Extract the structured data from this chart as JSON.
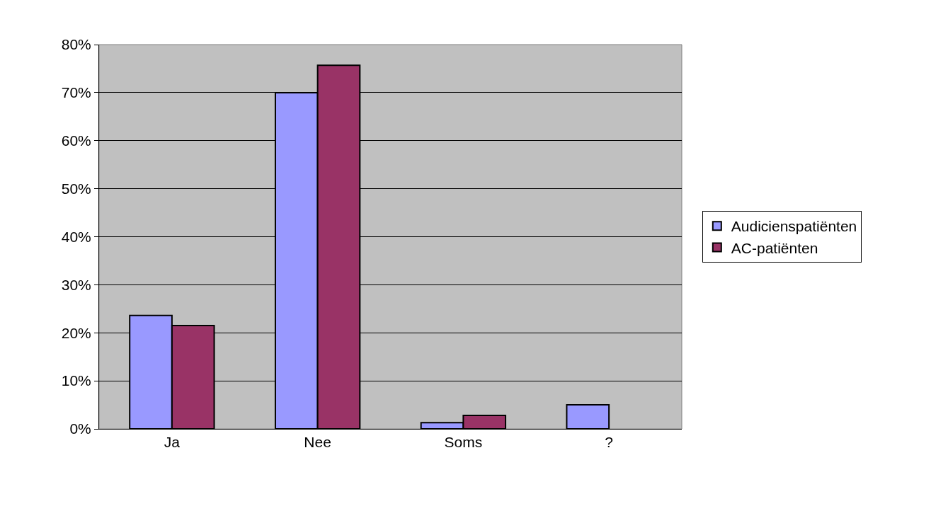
{
  "chart_data": {
    "type": "bar",
    "categories": [
      "Ja",
      "Nee",
      "Soms",
      "?"
    ],
    "series": [
      {
        "name": "Audicienspatiënten",
        "color": "#9999ff",
        "values": [
          23.6,
          70.0,
          1.3,
          5.0
        ]
      },
      {
        "name": "AC-patiënten",
        "color": "#993366",
        "values": [
          21.5,
          75.7,
          2.8,
          null
        ]
      }
    ],
    "ylim": [
      0,
      80
    ],
    "yticks": [
      {
        "value": 0,
        "label": "0%"
      },
      {
        "value": 10,
        "label": "10%"
      },
      {
        "value": 20,
        "label": "20%"
      },
      {
        "value": 30,
        "label": "30%"
      },
      {
        "value": 40,
        "label": "40%"
      },
      {
        "value": 50,
        "label": "50%"
      },
      {
        "value": 60,
        "label": "60%"
      },
      {
        "value": 70,
        "label": "70%"
      },
      {
        "value": 80,
        "label": "80%"
      }
    ],
    "grid": "y",
    "legend": "right"
  }
}
